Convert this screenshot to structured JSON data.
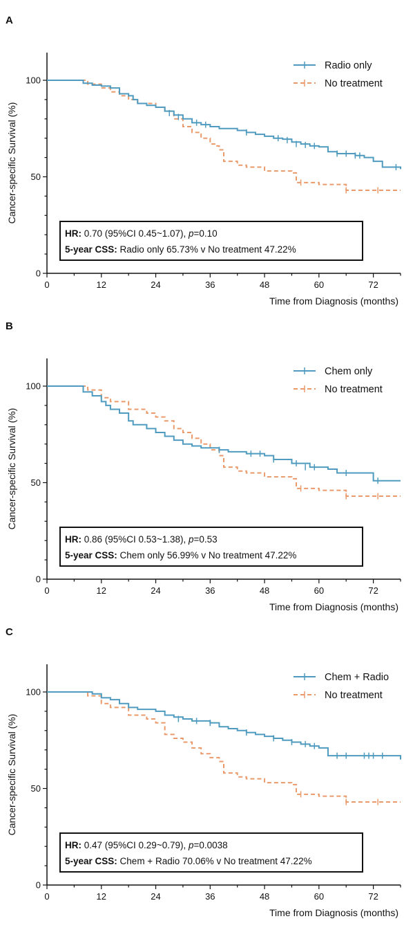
{
  "colors": {
    "series_a": "#4e9bbf",
    "series_b": "#ea9a6a"
  },
  "chart_data": [
    {
      "panel": "A",
      "type": "line",
      "xlabel": "Time from Diagnosis (months)",
      "ylabel": "Cancer-specific Survival (%)",
      "xlim": [
        0,
        78
      ],
      "ylim": [
        0,
        100
      ],
      "xticks": [
        0,
        12,
        24,
        36,
        48,
        60,
        72
      ],
      "yticks": [
        0,
        50,
        100
      ],
      "legend_position": "top-right",
      "annotation": {
        "line1_label": "HR:",
        "line1_pre": " 0.70 (95%CI 0.45~1.07), ",
        "line1_p": "p",
        "line1_post": "=0.10",
        "line2_label": "5-year CSS:",
        "line2_text": " Radio only 65.73% v No treatment 47.22%"
      },
      "series": [
        {
          "name": "Radio only",
          "color": "#4e9bbf",
          "dash": "solid",
          "points": [
            [
              0,
              100
            ],
            [
              6,
              100
            ],
            [
              8,
              98.5
            ],
            [
              10,
              97.5
            ],
            [
              12,
              97
            ],
            [
              14,
              96
            ],
            [
              16,
              93
            ],
            [
              18,
              92
            ],
            [
              19,
              90
            ],
            [
              20,
              88
            ],
            [
              22,
              87
            ],
            [
              24,
              86
            ],
            [
              26,
              84
            ],
            [
              28,
              82
            ],
            [
              30,
              80
            ],
            [
              32,
              78
            ],
            [
              34,
              77
            ],
            [
              36,
              76
            ],
            [
              38,
              75
            ],
            [
              40,
              75
            ],
            [
              42,
              74
            ],
            [
              44,
              73
            ],
            [
              46,
              72
            ],
            [
              48,
              71
            ],
            [
              50,
              70
            ],
            [
              52,
              69.5
            ],
            [
              54,
              68
            ],
            [
              56,
              67
            ],
            [
              58,
              66
            ],
            [
              60,
              65.5
            ],
            [
              62,
              63
            ],
            [
              64,
              62
            ],
            [
              66,
              62
            ],
            [
              68,
              61
            ],
            [
              70,
              60
            ],
            [
              72,
              58
            ],
            [
              74,
              55
            ],
            [
              76,
              55
            ],
            [
              78,
              54
            ]
          ],
          "censors": [
            [
              27,
              83
            ],
            [
              29,
              81
            ],
            [
              33,
              78
            ],
            [
              35,
              77
            ],
            [
              44,
              73
            ],
            [
              51,
              70
            ],
            [
              53,
              69
            ],
            [
              55,
              67
            ],
            [
              57,
              66.5
            ],
            [
              59,
              66
            ],
            [
              64,
              62
            ],
            [
              66,
              62
            ],
            [
              68,
              61
            ],
            [
              69,
              61
            ],
            [
              77,
              55
            ]
          ]
        },
        {
          "name": "No treatment",
          "color": "#ea9a6a",
          "dash": "dashed",
          "points": [
            [
              0,
              100
            ],
            [
              6,
              100
            ],
            [
              9,
              98
            ],
            [
              12,
              96
            ],
            [
              14,
              94
            ],
            [
              16,
              92
            ],
            [
              18,
              90
            ],
            [
              20,
              88
            ],
            [
              24,
              86
            ],
            [
              26,
              84
            ],
            [
              28,
              80
            ],
            [
              30,
              76
            ],
            [
              32,
              73
            ],
            [
              34,
              70
            ],
            [
              36,
              67
            ],
            [
              37,
              66
            ],
            [
              38,
              64
            ],
            [
              39,
              58
            ],
            [
              42,
              56
            ],
            [
              44,
              55
            ],
            [
              48,
              53
            ],
            [
              54,
              52
            ],
            [
              55,
              47
            ],
            [
              60,
              46
            ],
            [
              66,
              43
            ],
            [
              78,
              43
            ]
          ],
          "censors": [
            [
              56,
              47
            ],
            [
              66,
              43
            ],
            [
              73,
              43
            ]
          ]
        }
      ]
    },
    {
      "panel": "B",
      "type": "line",
      "xlabel": "Time from Diagnosis (months)",
      "ylabel": "Cancer-specific Survival (%)",
      "xlim": [
        0,
        78
      ],
      "ylim": [
        0,
        100
      ],
      "xticks": [
        0,
        12,
        24,
        36,
        48,
        60,
        72
      ],
      "yticks": [
        0,
        50,
        100
      ],
      "legend_position": "top-right",
      "annotation": {
        "line1_label": "HR:",
        "line1_pre": " 0.86 (95%CI 0.53~1.38), ",
        "line1_p": "p",
        "line1_post": "=0.53",
        "line2_label": "5-year CSS:",
        "line2_text": " Chem only 56.99% v No treatment 47.22%"
      },
      "series": [
        {
          "name": "Chem only",
          "color": "#4e9bbf",
          "dash": "solid",
          "points": [
            [
              0,
              100
            ],
            [
              6,
              100
            ],
            [
              8,
              97
            ],
            [
              10,
              95
            ],
            [
              12,
              92
            ],
            [
              13,
              90
            ],
            [
              14,
              88
            ],
            [
              16,
              86
            ],
            [
              18,
              82
            ],
            [
              19,
              80
            ],
            [
              22,
              78
            ],
            [
              24,
              76
            ],
            [
              26,
              74
            ],
            [
              28,
              72
            ],
            [
              30,
              70
            ],
            [
              32,
              69
            ],
            [
              34,
              68
            ],
            [
              36,
              68
            ],
            [
              38,
              67
            ],
            [
              40,
              66
            ],
            [
              44,
              65
            ],
            [
              48,
              64
            ],
            [
              50,
              62
            ],
            [
              54,
              60
            ],
            [
              58,
              58
            ],
            [
              62,
              57
            ],
            [
              64,
              55
            ],
            [
              70,
              55
            ],
            [
              72,
              51
            ],
            [
              78,
              51
            ]
          ],
          "censors": [
            [
              38,
              67
            ],
            [
              45,
              65
            ],
            [
              47,
              65
            ],
            [
              50,
              62
            ],
            [
              55,
              60
            ],
            [
              57,
              58
            ],
            [
              59,
              58
            ],
            [
              66,
              55
            ],
            [
              73,
              51
            ]
          ]
        },
        {
          "name": "No treatment",
          "color": "#ea9a6a",
          "dash": "dashed",
          "points": [
            [
              0,
              100
            ],
            [
              6,
              100
            ],
            [
              9,
              98
            ],
            [
              12,
              94
            ],
            [
              14,
              92
            ],
            [
              18,
              88
            ],
            [
              22,
              86
            ],
            [
              24,
              84
            ],
            [
              26,
              82
            ],
            [
              28,
              78
            ],
            [
              30,
              76
            ],
            [
              32,
              73
            ],
            [
              34,
              70
            ],
            [
              36,
              67
            ],
            [
              38,
              64
            ],
            [
              39,
              58
            ],
            [
              42,
              56
            ],
            [
              44,
              55
            ],
            [
              48,
              53
            ],
            [
              54,
              52
            ],
            [
              55,
              47
            ],
            [
              60,
              46
            ],
            [
              66,
              43
            ],
            [
              78,
              43
            ]
          ],
          "censors": [
            [
              56,
              47
            ],
            [
              66,
              43
            ],
            [
              73,
              43
            ]
          ]
        }
      ]
    },
    {
      "panel": "C",
      "type": "line",
      "xlabel": "Time from Diagnosis (months)",
      "ylabel": "Cancer-specific Survival (%)",
      "xlim": [
        0,
        78
      ],
      "ylim": [
        0,
        100
      ],
      "xticks": [
        0,
        12,
        24,
        36,
        48,
        60,
        72
      ],
      "yticks": [
        0,
        50,
        100
      ],
      "legend_position": "top-right",
      "annotation": {
        "line1_label": "HR:",
        "line1_pre": " 0.47 (95%CI 0.29~0.79), ",
        "line1_p": "p",
        "line1_post": "=0.0038",
        "line2_label": "5-year CSS:",
        "line2_text": " Chem + Radio 70.06% v No treatment 47.22%"
      },
      "series": [
        {
          "name": "Chem + Radio",
          "color": "#4e9bbf",
          "dash": "solid",
          "points": [
            [
              0,
              100
            ],
            [
              8,
              100
            ],
            [
              10,
              99
            ],
            [
              12,
              97
            ],
            [
              14,
              96
            ],
            [
              16,
              94
            ],
            [
              18,
              92
            ],
            [
              20,
              91
            ],
            [
              24,
              90
            ],
            [
              26,
              88
            ],
            [
              28,
              87
            ],
            [
              30,
              86
            ],
            [
              32,
              85
            ],
            [
              36,
              84
            ],
            [
              38,
              82
            ],
            [
              40,
              81
            ],
            [
              42,
              80
            ],
            [
              44,
              79
            ],
            [
              46,
              78
            ],
            [
              48,
              77
            ],
            [
              50,
              76
            ],
            [
              52,
              75
            ],
            [
              54,
              74
            ],
            [
              56,
              73
            ],
            [
              58,
              72
            ],
            [
              60,
              71
            ],
            [
              62,
              67
            ],
            [
              76,
              67
            ],
            [
              78,
              65
            ]
          ],
          "censors": [
            [
              29,
              86
            ],
            [
              33,
              85
            ],
            [
              36,
              84
            ],
            [
              44,
              79
            ],
            [
              50,
              76
            ],
            [
              54,
              74
            ],
            [
              57,
              73
            ],
            [
              59,
              72
            ],
            [
              64,
              67
            ],
            [
              66,
              67
            ],
            [
              70,
              67
            ],
            [
              71,
              67
            ],
            [
              72,
              67
            ],
            [
              74,
              67
            ]
          ]
        },
        {
          "name": "No treatment",
          "color": "#ea9a6a",
          "dash": "dashed",
          "points": [
            [
              0,
              100
            ],
            [
              8,
              100
            ],
            [
              9,
              98
            ],
            [
              12,
              94
            ],
            [
              14,
              92
            ],
            [
              18,
              88
            ],
            [
              22,
              86
            ],
            [
              24,
              84
            ],
            [
              26,
              78
            ],
            [
              28,
              76
            ],
            [
              30,
              74
            ],
            [
              32,
              71
            ],
            [
              34,
              68
            ],
            [
              36,
              66
            ],
            [
              38,
              64
            ],
            [
              39,
              58
            ],
            [
              42,
              56
            ],
            [
              44,
              55
            ],
            [
              48,
              53
            ],
            [
              54,
              52
            ],
            [
              55,
              47
            ],
            [
              60,
              46
            ],
            [
              66,
              43
            ],
            [
              78,
              43
            ]
          ],
          "censors": [
            [
              56,
              47
            ],
            [
              66,
              43
            ],
            [
              73,
              43
            ]
          ]
        }
      ]
    }
  ]
}
